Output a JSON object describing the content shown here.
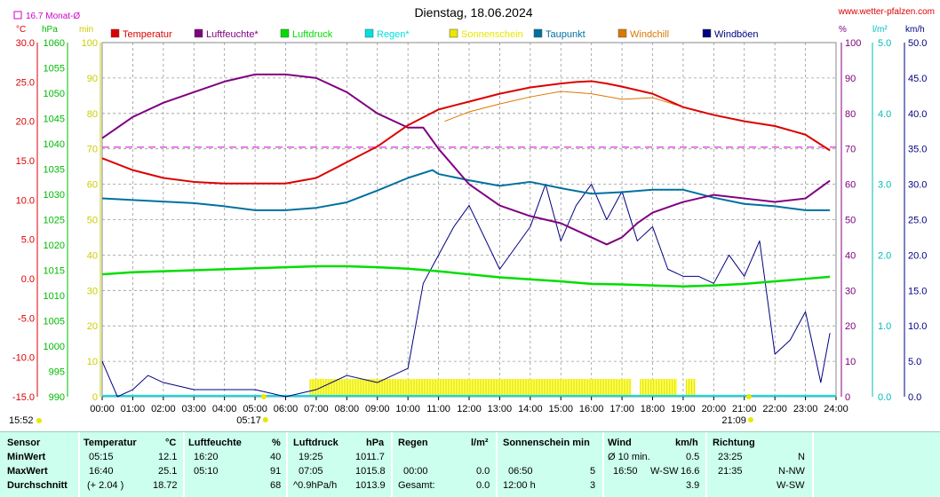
{
  "chart_data": {
    "type": "line",
    "title": "Dienstag, 18.06.2024",
    "source": "www.wetter-pfalzen.com",
    "monthly_avg_label": "16.7 Monat-Ø",
    "monthly_avg_temp": 16.7,
    "axis_units": {
      "temp": "°C",
      "pressure": "hPa",
      "min": "min",
      "humidity": "%",
      "rain": "l/m²",
      "wind": "km/h"
    },
    "x_ticks": [
      "00:00",
      "01:00",
      "02:00",
      "03:00",
      "04:00",
      "05:00",
      "06:00",
      "07:00",
      "08:00",
      "09:00",
      "10:00",
      "11:00",
      "12:00",
      "13:00",
      "14:00",
      "15:00",
      "16:00",
      "17:00",
      "18:00",
      "19:00",
      "20:00",
      "21:00",
      "22:00",
      "23:00",
      "24:00"
    ],
    "sunrise": "05:17",
    "sunset": "21:09",
    "temp_axis": {
      "min": -15,
      "max": 30,
      "ticks": [
        "30.0",
        "25.0",
        "20.0",
        "15.0",
        "10.0",
        "5.0",
        "0.0",
        "-5.0",
        "-10.0",
        "-15.0"
      ]
    },
    "pressure_axis": {
      "min": 990,
      "max": 1060,
      "ticks": [
        "1060",
        "1055",
        "1050",
        "1045",
        "1040",
        "1035",
        "1030",
        "1025",
        "1020",
        "1015",
        "1010",
        "1005",
        "1000",
        "995",
        "990"
      ]
    },
    "min_axis": {
      "min": 0,
      "max": 100,
      "ticks": [
        "100",
        "90",
        "80",
        "70",
        "60",
        "50",
        "40",
        "30",
        "20",
        "10",
        "0"
      ]
    },
    "humidity_axis": {
      "min": 0,
      "max": 100,
      "ticks": [
        "100",
        "90",
        "80",
        "70",
        "60",
        "50",
        "40",
        "30",
        "20",
        "10",
        "0"
      ]
    },
    "rain_axis": {
      "min": 0,
      "max": 5,
      "ticks": [
        "5.0",
        "4.0",
        "3.0",
        "2.0",
        "1.0",
        "0.0"
      ]
    },
    "wind_axis": {
      "min": 0,
      "max": 50,
      "ticks": [
        "50.0",
        "45.0",
        "40.0",
        "35.0",
        "30.0",
        "25.0",
        "20.0",
        "15.0",
        "10.0",
        "5.0",
        "0.0"
      ]
    },
    "legend": [
      {
        "name": "Temperatur",
        "color": "#dd0000"
      },
      {
        "name": "Luftfeuchte*",
        "color": "#800080"
      },
      {
        "name": "Luftdruck",
        "color": "#00dd00"
      },
      {
        "name": "Regen*",
        "color": "#00e0e0"
      },
      {
        "name": "Sonnenschein",
        "color": "#e8e800"
      },
      {
        "name": "Taupunkt",
        "color": "#0070a0"
      },
      {
        "name": "Windchill",
        "color": "#dd7700"
      },
      {
        "name": "Windböen",
        "color": "#000080"
      }
    ],
    "series": [
      {
        "name": "Temperatur",
        "unit": "°C",
        "x": [
          0,
          1,
          2,
          3,
          4,
          5,
          6,
          7,
          8,
          9,
          10,
          11,
          12,
          13,
          14,
          15,
          15.5,
          16,
          16.5,
          17,
          18,
          19,
          20,
          21,
          22,
          23,
          23.8
        ],
        "values": [
          15.3,
          13.8,
          12.8,
          12.3,
          12.1,
          12.1,
          12.1,
          12.8,
          14.8,
          16.8,
          19.5,
          21.5,
          22.5,
          23.5,
          24.3,
          24.8,
          25.0,
          25.1,
          24.8,
          24.4,
          23.5,
          21.8,
          20.8,
          20.0,
          19.4,
          18.3,
          16.3
        ]
      },
      {
        "name": "Luftfeuchte*",
        "unit": "%",
        "x": [
          0,
          1,
          2,
          3,
          4,
          5,
          6,
          7,
          8,
          9,
          10,
          10.5,
          11,
          12,
          13,
          14,
          15,
          16,
          16.5,
          17,
          17.5,
          18,
          19,
          20,
          21,
          22,
          23,
          23.8
        ],
        "values": [
          73,
          79,
          83,
          86,
          89,
          91,
          91,
          90,
          86,
          80,
          76,
          76,
          70,
          60,
          54,
          51,
          49,
          45,
          43,
          45,
          49,
          52,
          55,
          57,
          56,
          55,
          56,
          61
        ]
      },
      {
        "name": "Luftdruck",
        "unit": "hPa",
        "x": [
          0,
          1,
          2,
          3,
          4,
          5,
          6,
          7,
          8,
          9,
          10,
          11,
          12,
          13,
          14,
          15,
          16,
          17,
          18,
          19,
          20,
          21,
          22,
          23,
          23.8
        ],
        "values": [
          1014.2,
          1014.6,
          1014.8,
          1015.0,
          1015.2,
          1015.4,
          1015.6,
          1015.8,
          1015.8,
          1015.6,
          1015.3,
          1014.8,
          1014.2,
          1013.6,
          1013.2,
          1012.8,
          1012.3,
          1012.2,
          1012.0,
          1011.8,
          1012.0,
          1012.3,
          1012.8,
          1013.3,
          1013.7
        ]
      },
      {
        "name": "Taupunkt",
        "unit": "°C",
        "x": [
          0,
          1,
          2,
          3,
          4,
          5,
          6,
          7,
          8,
          9,
          10,
          10.8,
          11,
          12,
          13,
          14,
          15,
          16,
          17,
          18,
          19,
          20,
          21,
          22,
          23,
          23.8
        ],
        "values": [
          10.2,
          10.0,
          9.8,
          9.6,
          9.2,
          8.7,
          8.7,
          9.0,
          9.7,
          11.2,
          12.8,
          13.8,
          13.3,
          12.5,
          11.8,
          12.3,
          11.5,
          10.8,
          11.0,
          11.3,
          11.3,
          10.3,
          9.5,
          9.2,
          8.7,
          8.7
        ]
      },
      {
        "name": "Windchill",
        "unit": "°C",
        "x": [
          11.2,
          12,
          13,
          14,
          15,
          16,
          17,
          18,
          19
        ],
        "values": [
          20.0,
          21.2,
          22.2,
          23.1,
          23.8,
          23.5,
          22.8,
          23.0,
          21.8
        ]
      },
      {
        "name": "Windböen",
        "unit": "km/h",
        "x": [
          0,
          0.5,
          1,
          1.5,
          2,
          3,
          4,
          5,
          6,
          7,
          8,
          9,
          10,
          10.5,
          11,
          11.5,
          12,
          13,
          14,
          14.5,
          15,
          15.5,
          16,
          16.5,
          17,
          17.5,
          18,
          18.5,
          19,
          19.5,
          20,
          20.5,
          21,
          21.5,
          22,
          22.5,
          23,
          23.5,
          23.8
        ],
        "values": [
          5,
          0,
          1,
          3,
          2,
          1,
          1,
          1,
          0,
          1,
          3,
          2,
          4,
          16,
          20,
          24,
          27,
          18,
          24,
          30,
          22,
          27,
          30,
          25,
          29,
          22,
          24,
          18,
          17,
          17,
          16,
          20,
          17,
          22,
          6,
          8,
          12,
          2,
          9
        ]
      },
      {
        "name": "Sonnenschein",
        "unit": "min",
        "segments": [
          [
            6.8,
            17.3
          ],
          [
            17.6,
            18.8
          ],
          [
            19.1,
            19.4
          ]
        ],
        "value": 5
      }
    ],
    "xlim": [
      0,
      24
    ]
  },
  "table": {
    "headers": {
      "sensor": "Sensor",
      "temp": "Temperatur",
      "temp_unit": "°C",
      "hum": "Luftfeuchte",
      "hum_unit": "%",
      "press": "Luftdruck",
      "press_unit": "hPa",
      "rain": "Regen",
      "rain_unit": "l/m²",
      "sun": "Sonnenschein min",
      "wind": "Wind",
      "wind_unit": "km/h",
      "dir": "Richtung"
    },
    "rows": {
      "min_label": "MinWert",
      "max_label": "MaxWert",
      "avg_label": "Durchschnitt"
    },
    "temp": {
      "min_time": "05:15",
      "min_val": "12.1",
      "max_time": "16:40",
      "max_val": "25.1",
      "avg_trend": "(+ 2.04 )",
      "avg_val": "18.72"
    },
    "hum": {
      "min_time": "16:20",
      "min_val": "40",
      "max_time": "05:10",
      "max_val": "91",
      "avg_val": "68"
    },
    "press": {
      "min_time": "19:25",
      "min_val": "1011.7",
      "max_time": "07:05",
      "max_val": "1015.8",
      "avg_trend": "^0.9hPa/h",
      "avg_val": "1013.9"
    },
    "rain": {
      "max_time": "00:00",
      "max_val": "0.0",
      "avg_label": "Gesamt:",
      "avg_val": "0.0"
    },
    "sun": {
      "max_time": "06:50",
      "max_val": "5",
      "avg_label": "12:00 h",
      "avg_val": "3"
    },
    "wind": {
      "min_label": "Ø 10 min.",
      "min_val": "0.5",
      "max_time": "16:50",
      "max_dir": "W-SW",
      "max_val": "16.6",
      "avg_val": "3.9"
    },
    "dir": {
      "min_time": "23:25",
      "min_val": "N",
      "max_time": "21:35",
      "max_val": "N-NW",
      "avg_val": "W-SW"
    }
  },
  "clock": "15:52"
}
